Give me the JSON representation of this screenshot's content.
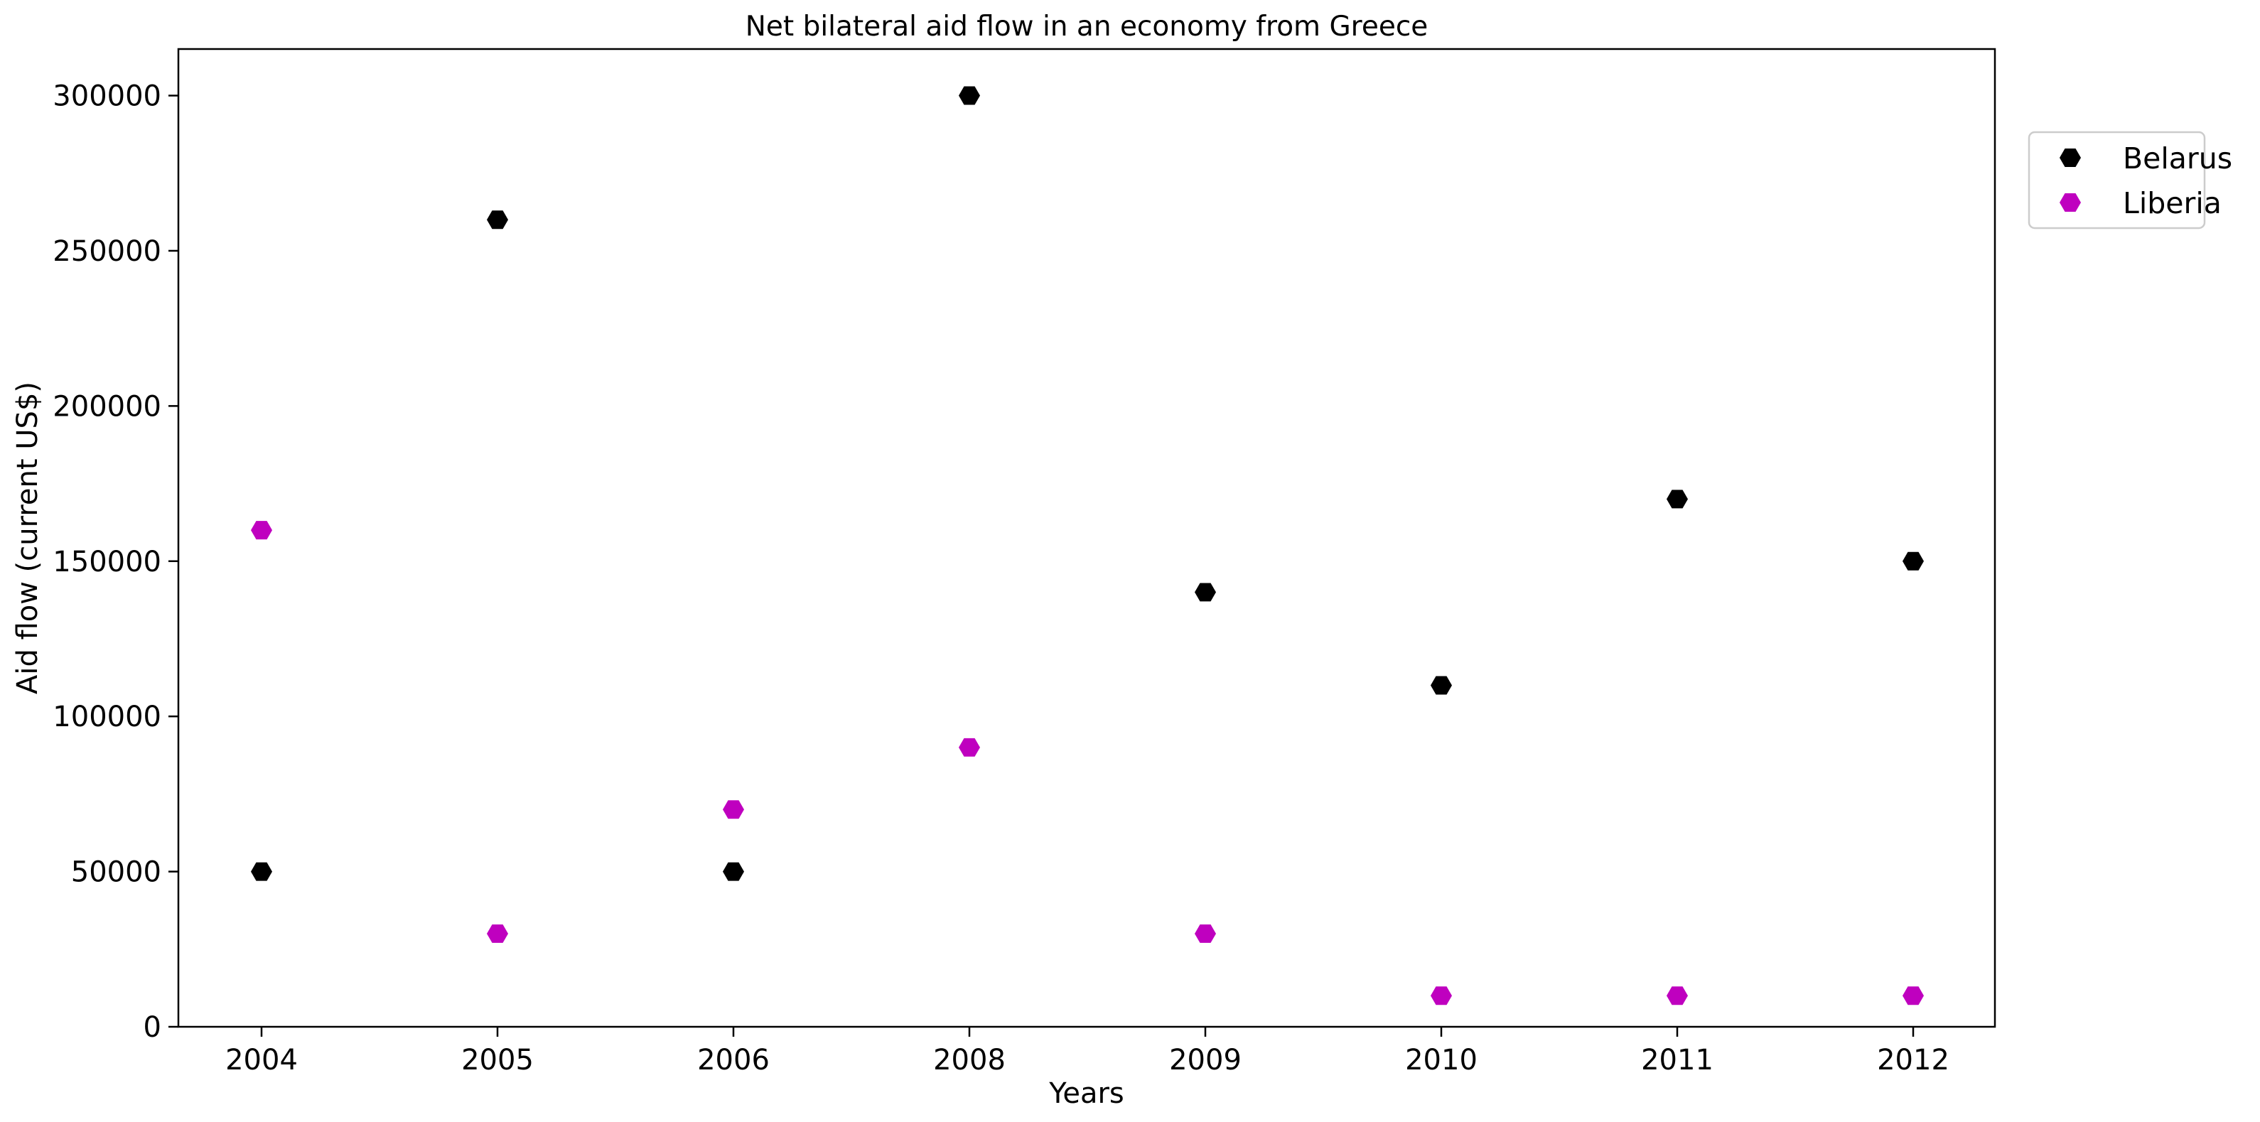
{
  "chart_data": {
    "type": "scatter",
    "title": "Net bilateral aid flow in an economy from Greece",
    "xlabel": "Years",
    "ylabel": "Aid flow (current US$)",
    "categories": [
      "2004",
      "2005",
      "2006",
      "2008",
      "2009",
      "2010",
      "2011",
      "2012"
    ],
    "ylim": [
      0,
      315000
    ],
    "yticks": [
      0,
      50000,
      100000,
      150000,
      200000,
      250000,
      300000
    ],
    "grid": false,
    "legend_position": "top-right outside",
    "series": [
      {
        "name": "Belarus",
        "color": "#000000",
        "marker": "hexagon",
        "values": [
          50000,
          260000,
          50000,
          300000,
          140000,
          110000,
          170000,
          150000
        ]
      },
      {
        "name": "Liberia",
        "color": "#bf00bf",
        "marker": "hexagon",
        "values": [
          160000,
          30000,
          70000,
          90000,
          30000,
          10000,
          10000,
          10000
        ]
      }
    ]
  }
}
